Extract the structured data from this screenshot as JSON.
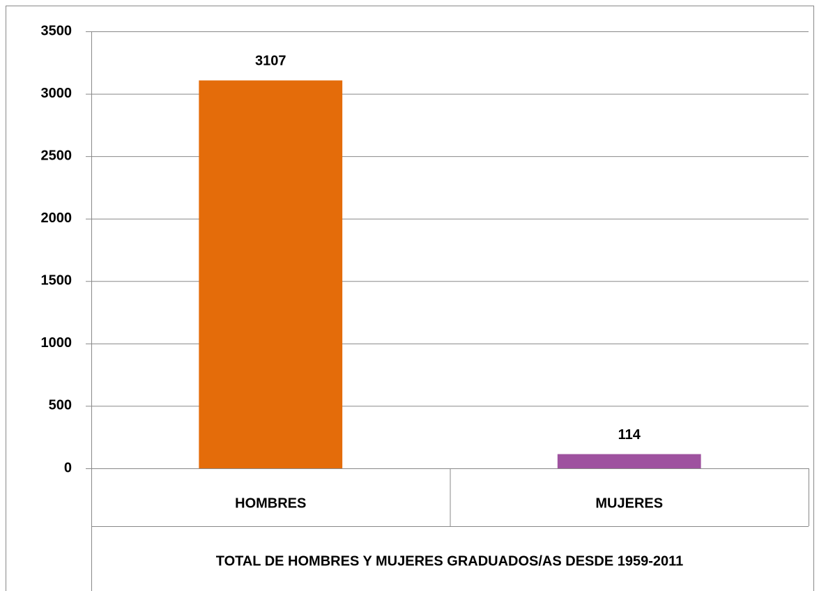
{
  "chart_data": {
    "type": "bar",
    "x_label": "TOTAL DE HOMBRES Y MUJERES GRADUADOS/AS DESDE 1959-2011",
    "categories": [
      "HOMBRES",
      "MUJERES"
    ],
    "values": [
      3107,
      114
    ],
    "colors": [
      "#e46c0a",
      "#9e529f"
    ],
    "ylim": [
      0,
      3500
    ],
    "yticks": [
      0,
      500,
      1000,
      1500,
      2000,
      2500,
      3000,
      3500
    ],
    "grid": true
  }
}
